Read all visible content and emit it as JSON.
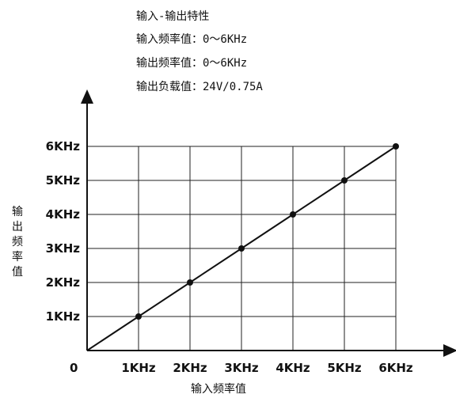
{
  "header": {
    "title": "输入-输出特性",
    "lines": [
      "输入频率值：0～6KHz",
      "输出频率值：0～6KHz",
      "输出负载值：24V/0.75A"
    ]
  },
  "chart_data": {
    "type": "line",
    "title": "输入-输出特性",
    "xlabel": "输入频率值",
    "ylabel": "输出频率值",
    "origin_label": "0",
    "x_ticks": [
      "1KHz",
      "2KHz",
      "3KHz",
      "4KHz",
      "5KHz",
      "6KHz"
    ],
    "y_ticks": [
      "1KHz",
      "2KHz",
      "3KHz",
      "4KHz",
      "5KHz",
      "6KHz"
    ],
    "xlim": [
      0,
      6
    ],
    "ylim": [
      0,
      6
    ],
    "grid": true,
    "series": [
      {
        "x": [
          0,
          1,
          2,
          3,
          4,
          5,
          6
        ],
        "y": [
          0,
          1,
          2,
          3,
          4,
          5,
          6
        ],
        "markers": [
          1,
          2,
          3,
          4,
          5,
          6
        ]
      }
    ],
    "colors": {
      "line": "#111111",
      "grid": "#222222"
    }
  }
}
